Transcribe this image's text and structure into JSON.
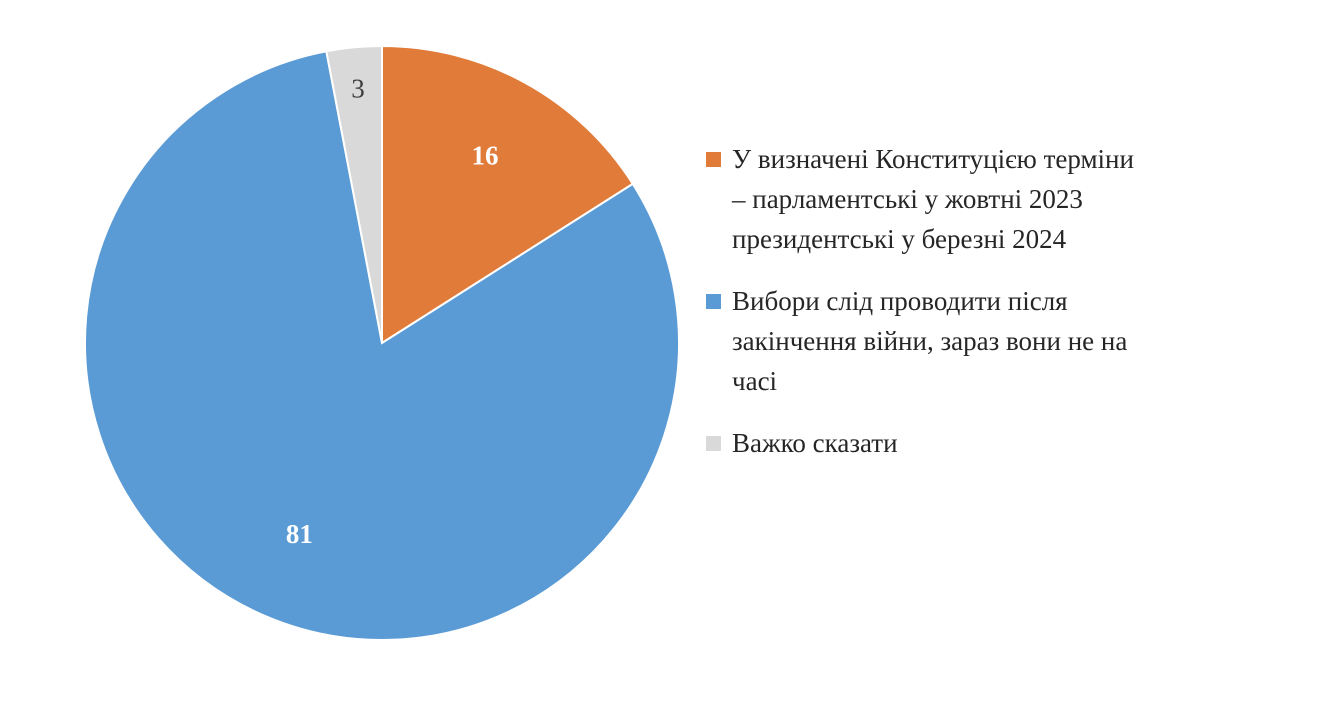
{
  "chart_data": {
    "type": "pie",
    "title": "",
    "slices": [
      {
        "name": "У визначені Конституцією терміни – парламентські у жовтні 2023 президентські у березні 2024",
        "value": 16,
        "label": "16",
        "color": "#e07b39"
      },
      {
        "name": "Вибори слід проводити після закінчення війни, зараз вони не на часі",
        "value": 81,
        "label": "81",
        "color": "#5b9bd5"
      },
      {
        "name": "Важко сказати",
        "value": 3,
        "label": "3",
        "color": "#d9d9d9"
      }
    ],
    "legend_position": "right",
    "label_colors": [
      "#ffffff",
      "#ffffff",
      "#404040"
    ]
  },
  "legend": {
    "items": [
      {
        "lines": [
          "У визначені Конституцією терміни",
          "– парламентські у жовтні 2023",
          "президентські у березні 2024"
        ],
        "color": "#e07b39"
      },
      {
        "lines": [
          "Вибори слід проводити після",
          "закінчення війни, зараз вони не на",
          "часі"
        ],
        "color": "#5b9bd5"
      },
      {
        "lines": [
          "Важко сказати"
        ],
        "color": "#d9d9d9"
      }
    ]
  }
}
